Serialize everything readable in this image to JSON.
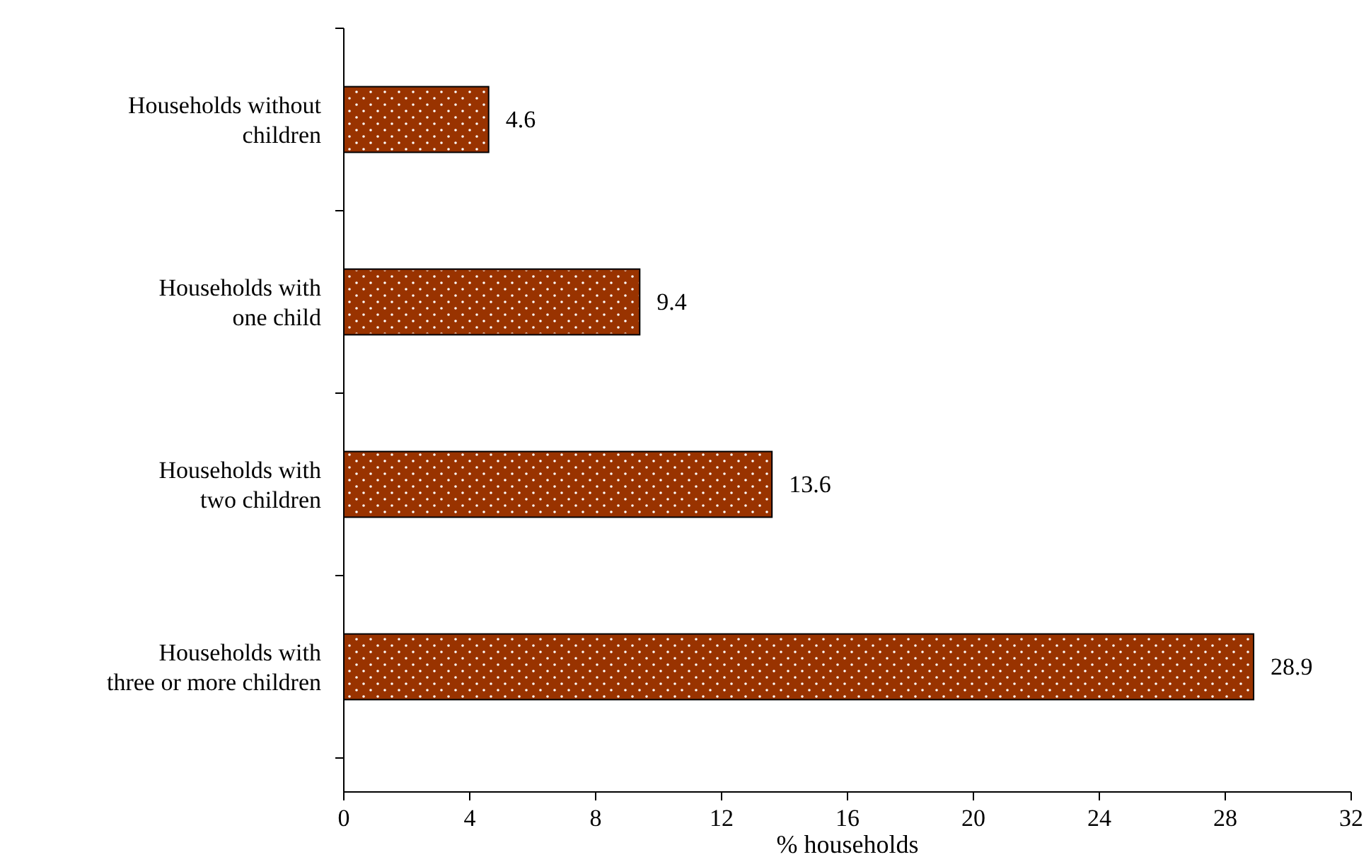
{
  "chart_data": {
    "type": "bar",
    "orientation": "horizontal",
    "xlabel": "% households",
    "categories": [
      "Households without children",
      "Households with one child",
      "Households with two children",
      "Households with three or more children"
    ],
    "values": [
      4.6,
      9.4,
      13.6,
      28.9
    ],
    "color": "#993300",
    "xlim": [
      0,
      32
    ],
    "xticks": [
      0,
      4,
      8,
      12,
      16,
      20,
      24,
      28,
      32
    ],
    "data_labels": true,
    "grid": false
  }
}
